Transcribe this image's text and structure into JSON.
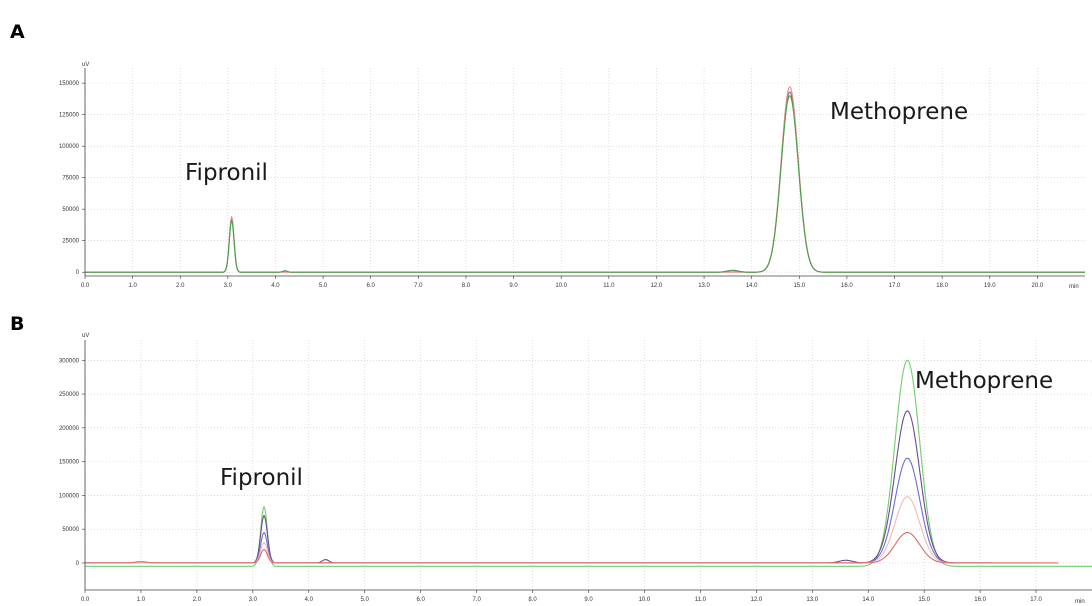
{
  "chart_data": [
    {
      "type": "line",
      "panel_label": "A",
      "ylabel": "uV",
      "xlabel": "min",
      "xlim": [
        0,
        21.0
      ],
      "ylim": [
        -3000,
        162000
      ],
      "grid": true,
      "x_tick_labels": [
        "0.0",
        "1.0",
        "2.0",
        "3.0",
        "4.0",
        "5.0",
        "6.0",
        "7.0",
        "8.0",
        "9.0",
        "10.0",
        "11.0",
        "12.0",
        "13.0",
        "14.0",
        "15.0",
        "16.0",
        "17.0",
        "18.0",
        "19.0",
        "20.0"
      ],
      "y_tick_labels": [
        "0",
        "25000",
        "50000",
        "75000",
        "100000",
        "125000",
        "150000"
      ],
      "annotations": [
        {
          "text": "Fipronil",
          "x": 3.08,
          "y": 43000
        },
        {
          "text": "Methoprene",
          "x": 14.8,
          "y": 147000
        }
      ],
      "series": [
        {
          "color": "#7a7a7a",
          "baseline": 0,
          "x_end": 21.0,
          "peaks": [
            {
              "x": 3.08,
              "y": 42000,
              "w": 0.05
            },
            {
              "x": 4.2,
              "y": 1200,
              "w": 0.05
            },
            {
              "x": 13.6,
              "y": 1500,
              "w": 0.12
            },
            {
              "x": 14.8,
              "y": 143000,
              "w": 0.18
            }
          ]
        },
        {
          "color": "#e8898f",
          "baseline": 0,
          "x_end": 21.0,
          "peaks": [
            {
              "x": 3.08,
              "y": 44000,
              "w": 0.05
            },
            {
              "x": 14.8,
              "y": 147000,
              "w": 0.18
            }
          ]
        },
        {
          "color": "#48a048",
          "baseline": 0,
          "x_end": 21.0,
          "peaks": [
            {
              "x": 3.08,
              "y": 41000,
              "w": 0.05
            },
            {
              "x": 4.2,
              "y": 1000,
              "w": 0.05
            },
            {
              "x": 13.6,
              "y": 1200,
              "w": 0.12
            },
            {
              "x": 14.8,
              "y": 140000,
              "w": 0.18
            }
          ]
        }
      ]
    },
    {
      "type": "line",
      "panel_label": "B",
      "ylabel": "uV",
      "xlabel": "min",
      "xlim": [
        0,
        18.0
      ],
      "ylim": [
        -40000,
        330000
      ],
      "grid": true,
      "x_tick_labels": [
        "0.0",
        "1.0",
        "2.0",
        "3.0",
        "4.0",
        "5.0",
        "6.0",
        "7.0",
        "8.0",
        "9.0",
        "10.0",
        "11.0",
        "12.0",
        "13.0",
        "14.0",
        "15.0",
        "16.0",
        "17.0"
      ],
      "y_tick_labels": [
        "0",
        "50000",
        "100000",
        "150000",
        "200000",
        "250000",
        "300000"
      ],
      "annotations": [
        {
          "text": "Fipronil",
          "x": 3.2,
          "y": 90000
        },
        {
          "text": "Methoprene",
          "x": 14.7,
          "y": 305000
        }
      ],
      "series": [
        {
          "color": "#6ecf6e",
          "baseline": -5000,
          "x_end": 18.0,
          "peaks": [
            {
              "x": 3.2,
              "y": 88000,
              "w": 0.06
            },
            {
              "x": 14.7,
              "y": 305000,
              "w": 0.22
            }
          ]
        },
        {
          "color": "#6a4c8c",
          "baseline": 0,
          "x_end": 16.2,
          "peaks": [
            {
              "x": 3.2,
              "y": 70000,
              "w": 0.06
            },
            {
              "x": 4.3,
              "y": 5000,
              "w": 0.06
            },
            {
              "x": 13.6,
              "y": 4000,
              "w": 0.12
            },
            {
              "x": 14.7,
              "y": 225000,
              "w": 0.22
            }
          ]
        },
        {
          "color": "#6b6bd8",
          "baseline": 0,
          "x_end": 16.2,
          "peaks": [
            {
              "x": 3.2,
              "y": 45000,
              "w": 0.06
            },
            {
              "x": 14.7,
              "y": 155000,
              "w": 0.22
            }
          ]
        },
        {
          "color": "#f3b9b2",
          "baseline": 0,
          "x_end": 17.0,
          "peaks": [
            {
              "x": 3.2,
              "y": 30000,
              "w": 0.06
            },
            {
              "x": 14.7,
              "y": 98000,
              "w": 0.22
            }
          ]
        },
        {
          "color": "#e06868",
          "baseline": 0,
          "x_end": 17.4,
          "peaks": [
            {
              "x": 1.0,
              "y": 2000,
              "w": 0.1
            },
            {
              "x": 3.2,
              "y": 20000,
              "w": 0.06
            },
            {
              "x": 14.7,
              "y": 45000,
              "w": 0.22
            }
          ]
        }
      ]
    }
  ]
}
